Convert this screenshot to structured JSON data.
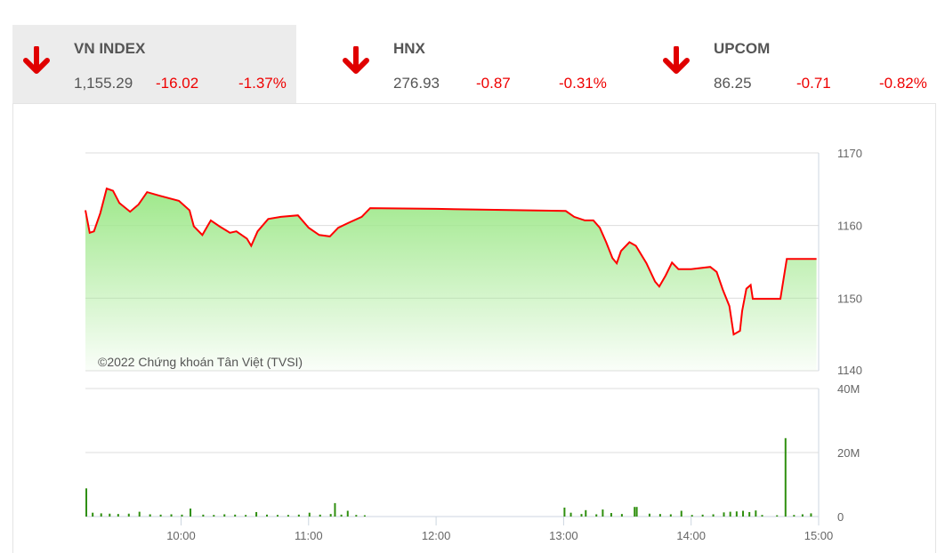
{
  "indices": [
    {
      "name": "VN INDEX",
      "value": "1,155.29",
      "change": "-16.02",
      "percent": "-1.37%",
      "direction": "down",
      "active": true
    },
    {
      "name": "HNX",
      "value": "276.93",
      "change": "-0.87",
      "percent": "-0.31%",
      "direction": "down",
      "active": false
    },
    {
      "name": "UPCOM",
      "value": "86.25",
      "change": "-0.71",
      "percent": "-0.82%",
      "direction": "down",
      "active": false
    }
  ],
  "colors": {
    "down": "#e00000",
    "line": "#ff0000",
    "area": "#9ee88a",
    "volume": "#2f8f0f"
  },
  "copyright": "©2022 Chứng khoán Tân Việt (TVSI)",
  "chart_data": [
    {
      "type": "area",
      "xlim": [
        "09:15",
        "15:00"
      ],
      "ylim": [
        1140,
        1170
      ],
      "yticks": [
        "1170",
        "1160",
        "1150",
        "1140"
      ],
      "grid": true,
      "x": [
        "09:15",
        "09:17",
        "09:19",
        "09:22",
        "09:25",
        "09:28",
        "09:31",
        "09:36",
        "09:40",
        "09:44",
        "09:50",
        "09:59",
        "10:04",
        "10:06",
        "10:10",
        "10:14",
        "10:18",
        "10:23",
        "10:26",
        "10:31",
        "10:33",
        "10:36",
        "10:41",
        "10:47",
        "10:55",
        "11:00",
        "11:05",
        "11:10",
        "11:14",
        "11:19",
        "11:25",
        "11:29",
        "12:00",
        "13:01",
        "13:05",
        "13:10",
        "13:14",
        "13:17",
        "13:20",
        "13:23",
        "13:25",
        "13:27",
        "13:31",
        "13:34",
        "13:39",
        "13:43",
        "13:45",
        "13:48",
        "13:51",
        "13:54",
        "14:00",
        "14:09",
        "14:12",
        "14:15",
        "14:18",
        "14:20",
        "14:23",
        "14:24",
        "14:26",
        "14:28",
        "14:29",
        "14:42",
        "14:45",
        "14:59"
      ],
      "values": [
        1162.1,
        1159.0,
        1159.2,
        1161.7,
        1165.1,
        1164.8,
        1163.1,
        1161.9,
        1162.9,
        1164.6,
        1164.1,
        1163.4,
        1162.1,
        1159.9,
        1158.7,
        1160.7,
        1159.9,
        1159.0,
        1159.2,
        1158.2,
        1157.2,
        1159.2,
        1160.9,
        1161.2,
        1161.4,
        1159.7,
        1158.7,
        1158.5,
        1159.7,
        1160.4,
        1161.2,
        1162.4,
        1162.3,
        1162.0,
        1161.2,
        1160.7,
        1160.7,
        1159.7,
        1157.7,
        1155.5,
        1154.8,
        1156.5,
        1157.7,
        1157.2,
        1154.8,
        1152.3,
        1151.6,
        1153.1,
        1154.9,
        1154.0,
        1154.0,
        1154.3,
        1153.6,
        1151.1,
        1148.9,
        1145.0,
        1145.5,
        1148.2,
        1151.3,
        1151.8,
        1149.9,
        1149.9,
        1155.4,
        1155.4
      ]
    },
    {
      "type": "bar",
      "ylim": [
        0,
        40
      ],
      "yticks": [
        "40M",
        "20M",
        "0"
      ],
      "xticks": [
        "10:00",
        "11:00",
        "12:00",
        "13:00",
        "14:00",
        "15:00"
      ],
      "x": [
        "09:15",
        "09:18",
        "09:22",
        "09:26",
        "09:30",
        "09:35",
        "09:40",
        "09:45",
        "09:50",
        "09:55",
        "10:00",
        "10:04",
        "10:10",
        "10:15",
        "10:20",
        "10:25",
        "10:30",
        "10:35",
        "10:40",
        "10:45",
        "10:50",
        "10:55",
        "11:00",
        "11:05",
        "11:10",
        "11:12",
        "11:15",
        "11:18",
        "11:22",
        "11:26",
        "13:00",
        "13:03",
        "13:08",
        "13:10",
        "13:15",
        "13:18",
        "13:22",
        "13:27",
        "13:33",
        "13:34",
        "13:40",
        "13:45",
        "13:50",
        "13:55",
        "14:00",
        "14:05",
        "14:10",
        "14:15",
        "14:18",
        "14:21",
        "14:24",
        "14:27",
        "14:30",
        "14:33",
        "14:40",
        "14:44",
        "14:48",
        "14:52",
        "14:56"
      ],
      "values": [
        8.8,
        1.2,
        1.0,
        0.9,
        0.8,
        0.9,
        1.5,
        0.7,
        0.6,
        0.7,
        0.6,
        2.5,
        0.6,
        0.5,
        0.7,
        0.6,
        0.5,
        1.4,
        0.6,
        0.5,
        0.5,
        0.6,
        1.2,
        0.6,
        0.8,
        4.2,
        0.6,
        1.8,
        0.5,
        0.4,
        2.8,
        1.2,
        0.8,
        2.0,
        0.7,
        2.2,
        1.1,
        0.8,
        3.0,
        3.0,
        0.9,
        0.8,
        0.7,
        1.8,
        0.5,
        0.6,
        0.7,
        1.3,
        1.5,
        1.6,
        1.8,
        1.4,
        1.9,
        0.5,
        0.4,
        24.5,
        0.5,
        0.7,
        1.0
      ]
    }
  ]
}
